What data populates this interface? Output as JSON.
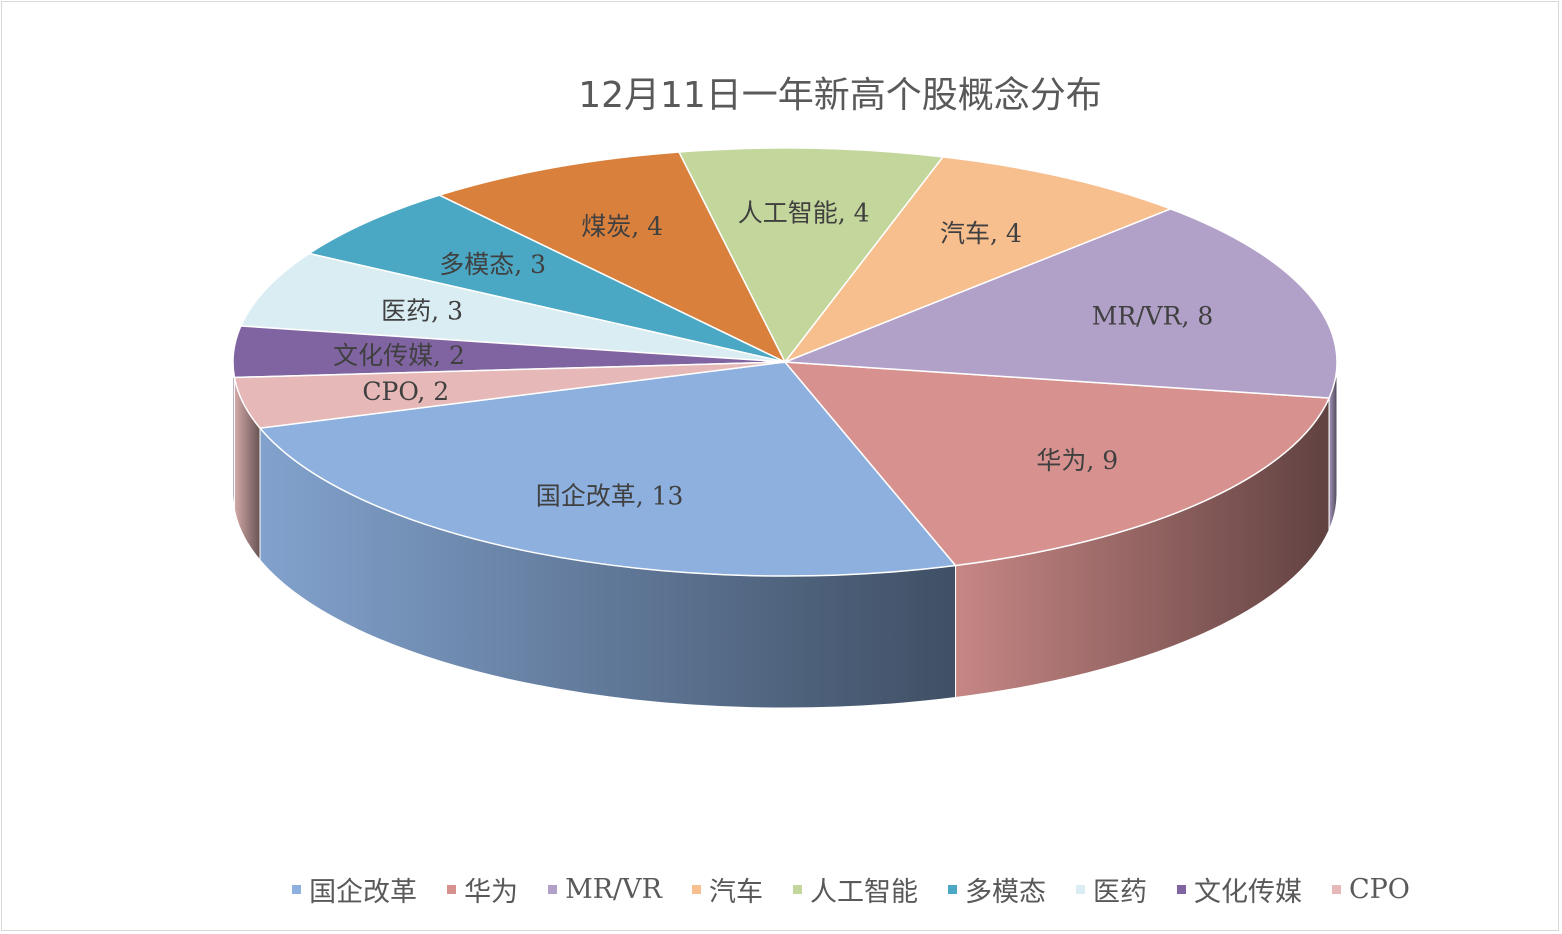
{
  "chart_data": {
    "type": "pie",
    "title": "12月11日一年新高个股概念分布",
    "categories": [
      "国企改革",
      "华为",
      "MR/VR",
      "汽车",
      "人工智能",
      "煤炭",
      "多模态",
      "医药",
      "文化传媒",
      "CPO"
    ],
    "values": [
      13,
      9,
      8,
      4,
      4,
      4,
      3,
      3,
      2,
      2
    ],
    "data_labels": [
      "国企改革, 13",
      "华为, 9",
      "MR/VR, 8",
      "汽车, 4",
      "人工智能, 4",
      "煤炭, 4",
      "多模态, 3",
      "医药, 3",
      "文化传媒, 2",
      "CPO, 2"
    ],
    "legend_items": [
      "国企改革",
      "华为",
      "MR/VR",
      "汽车",
      "人工智能",
      "多模态",
      "医药",
      "文化传媒",
      "CPO"
    ],
    "colors": {
      "国企改革": "#8DB0DF",
      "华为": "#D79290",
      "MR/VR": "#B1A0C8",
      "汽车": "#F7BE8E",
      "人工智能": "#C3D69B",
      "煤炭": "#D9803D",
      "多模态": "#4BA8C4",
      "医药": "#DAEDF3",
      "文化传媒": "#8064A2",
      "CPO": "#E6B9B8"
    },
    "style": "3d-exploded-pie",
    "legend_position": "bottom"
  }
}
